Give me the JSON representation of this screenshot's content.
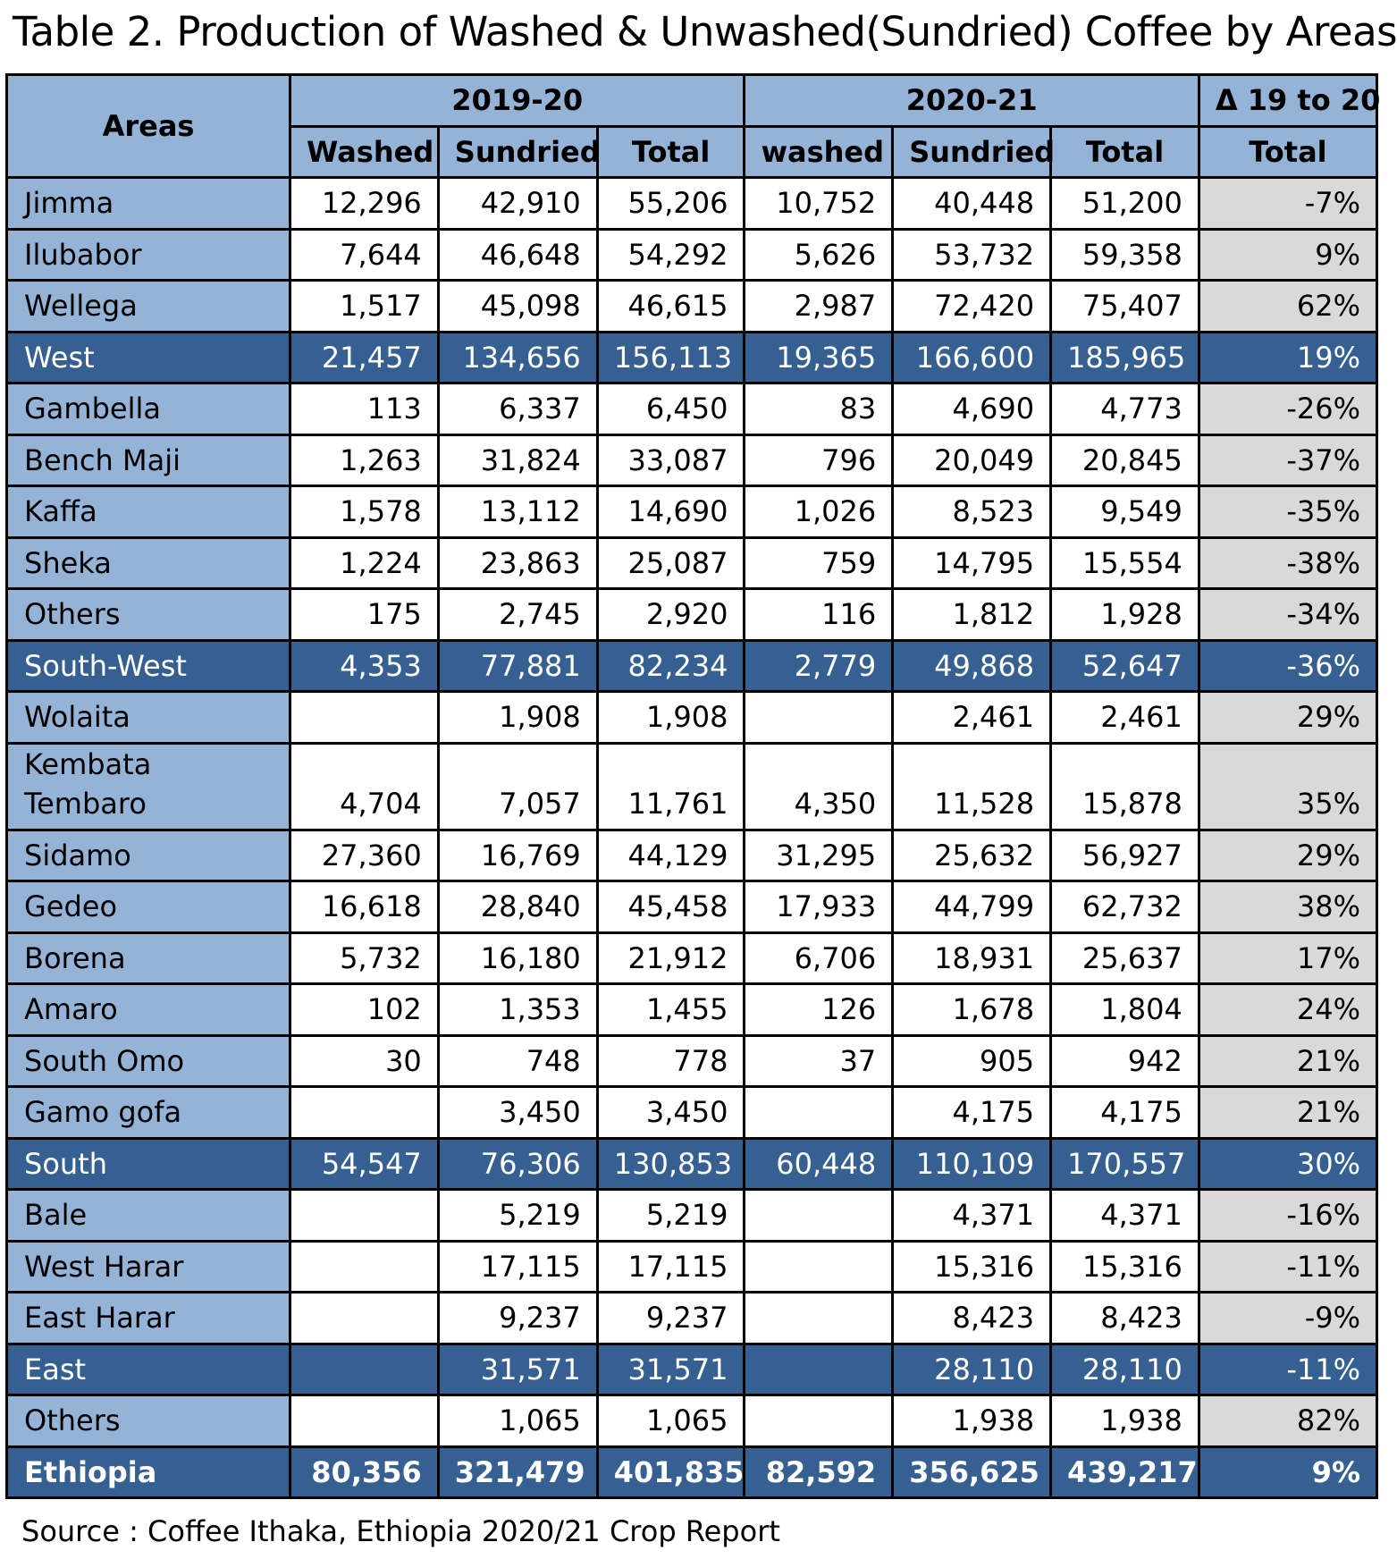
{
  "title": "Table 2. Production of Washed & Unwashed(Sundried) Coffee by Areas",
  "source": "Source : Coffee Ithaka, Ethiopia 2020/21 Crop Report",
  "headers": {
    "areas": "Areas",
    "period1": "2019-20",
    "period2": "2020-21",
    "delta": "Δ 19 to 20",
    "p1_washed": "Washed",
    "p1_sundried": "Sundried",
    "p1_total": "Total",
    "p2_washed": "washed",
    "p2_sundried": "Sundried",
    "p2_total": "Total",
    "delta_total": "Total"
  },
  "rows": [
    {
      "area": "Jimma",
      "w1": "12,296",
      "s1": "42,910",
      "t1": "55,206",
      "w2": "10,752",
      "s2": "40,448",
      "t2": "51,200",
      "d": "-7%"
    },
    {
      "area": "Ilubabor",
      "w1": "7,644",
      "s1": "46,648",
      "t1": "54,292",
      "w2": "5,626",
      "s2": "53,732",
      "t2": "59,358",
      "d": "9%"
    },
    {
      "area": "Wellega",
      "w1": "1,517",
      "s1": "45,098",
      "t1": "46,615",
      "w2": "2,987",
      "s2": "72,420",
      "t2": "75,407",
      "d": "62%"
    },
    {
      "area": "West",
      "w1": "21,457",
      "s1": "134,656",
      "t1": "156,113",
      "w2": "19,365",
      "s2": "166,600",
      "t2": "185,965",
      "d": "19%"
    },
    {
      "area": "Gambella",
      "w1": "113",
      "s1": "6,337",
      "t1": "6,450",
      "w2": "83",
      "s2": "4,690",
      "t2": "4,773",
      "d": "-26%"
    },
    {
      "area": "Bench Maji",
      "w1": "1,263",
      "s1": "31,824",
      "t1": "33,087",
      "w2": "796",
      "s2": "20,049",
      "t2": "20,845",
      "d": "-37%"
    },
    {
      "area": "Kaffa",
      "w1": "1,578",
      "s1": "13,112",
      "t1": "14,690",
      "w2": "1,026",
      "s2": "8,523",
      "t2": "9,549",
      "d": "-35%"
    },
    {
      "area": "Sheka",
      "w1": "1,224",
      "s1": "23,863",
      "t1": "25,087",
      "w2": "759",
      "s2": "14,795",
      "t2": "15,554",
      "d": "-38%"
    },
    {
      "area": "Others",
      "w1": "175",
      "s1": "2,745",
      "t1": "2,920",
      "w2": "116",
      "s2": "1,812",
      "t2": "1,928",
      "d": "-34%"
    },
    {
      "area": "South-West",
      "w1": "4,353",
      "s1": "77,881",
      "t1": "82,234",
      "w2": "2,779",
      "s2": "49,868",
      "t2": "52,647",
      "d": "-36%"
    },
    {
      "area": "Wolaita",
      "w1": "",
      "s1": "1,908",
      "t1": "1,908",
      "w2": "",
      "s2": "2,461",
      "t2": "2,461",
      "d": "29%"
    },
    {
      "area": "Kembata Tembaro",
      "w1": "4,704",
      "s1": "7,057",
      "t1": "11,761",
      "w2": "4,350",
      "s2": "11,528",
      "t2": "15,878",
      "d": "35%"
    },
    {
      "area": "Sidamo",
      "w1": "27,360",
      "s1": "16,769",
      "t1": "44,129",
      "w2": "31,295",
      "s2": "25,632",
      "t2": "56,927",
      "d": "29%"
    },
    {
      "area": "Gedeo",
      "w1": "16,618",
      "s1": "28,840",
      "t1": "45,458",
      "w2": "17,933",
      "s2": "44,799",
      "t2": "62,732",
      "d": "38%"
    },
    {
      "area": "Borena",
      "w1": "5,732",
      "s1": "16,180",
      "t1": "21,912",
      "w2": "6,706",
      "s2": "18,931",
      "t2": "25,637",
      "d": "17%"
    },
    {
      "area": "Amaro",
      "w1": "102",
      "s1": "1,353",
      "t1": "1,455",
      "w2": "126",
      "s2": "1,678",
      "t2": "1,804",
      "d": "24%"
    },
    {
      "area": "South Omo",
      "w1": "30",
      "s1": "748",
      "t1": "778",
      "w2": "37",
      "s2": "905",
      "t2": "942",
      "d": "21%"
    },
    {
      "area": "Gamo gofa",
      "w1": "",
      "s1": "3,450",
      "t1": "3,450",
      "w2": "",
      "s2": "4,175",
      "t2": "4,175",
      "d": "21%"
    },
    {
      "area": "South",
      "w1": "54,547",
      "s1": "76,306",
      "t1": "130,853",
      "w2": "60,448",
      "s2": "110,109",
      "t2": "170,557",
      "d": "30%"
    },
    {
      "area": "Bale",
      "w1": "",
      "s1": "5,219",
      "t1": "5,219",
      "w2": "",
      "s2": "4,371",
      "t2": "4,371",
      "d": "-16%"
    },
    {
      "area": "West Harar",
      "w1": "",
      "s1": "17,115",
      "t1": "17,115",
      "w2": "",
      "s2": "15,316",
      "t2": "15,316",
      "d": "-11%"
    },
    {
      "area": "East Harar",
      "w1": "",
      "s1": "9,237",
      "t1": "9,237",
      "w2": "",
      "s2": "8,423",
      "t2": "8,423",
      "d": "-9%"
    },
    {
      "area": "East",
      "w1": "",
      "s1": "31,571",
      "t1": "31,571",
      "w2": "",
      "s2": "28,110",
      "t2": "28,110",
      "d": "-11%"
    },
    {
      "area": "Others",
      "w1": "",
      "s1": "1,065",
      "t1": "1,065",
      "w2": "",
      "s2": "1,938",
      "t2": "1,938",
      "d": "82%"
    },
    {
      "area": "Ethiopia",
      "w1": "80,356",
      "s1": "321,479",
      "t1": "401,835",
      "w2": "82,592",
      "s2": "356,625",
      "t2": "439,217",
      "d": "9%"
    }
  ],
  "chart_data": {
    "type": "table",
    "title": "Table 2. Production of Washed & Unwashed(Sundried) Coffee by Areas",
    "columns": [
      "Areas",
      "2019-20 Washed",
      "2019-20 Sundried",
      "2019-20 Total",
      "2020-21 washed",
      "2020-21 Sundried",
      "2020-21 Total",
      "Δ 19 to 20 Total"
    ],
    "subtotal_rows": [
      "West",
      "South-West",
      "South",
      "East"
    ],
    "total_row": "Ethiopia",
    "colors": {
      "header": "#95b3d7",
      "subtotal": "#366092",
      "delta": "#d9d9d9"
    }
  }
}
